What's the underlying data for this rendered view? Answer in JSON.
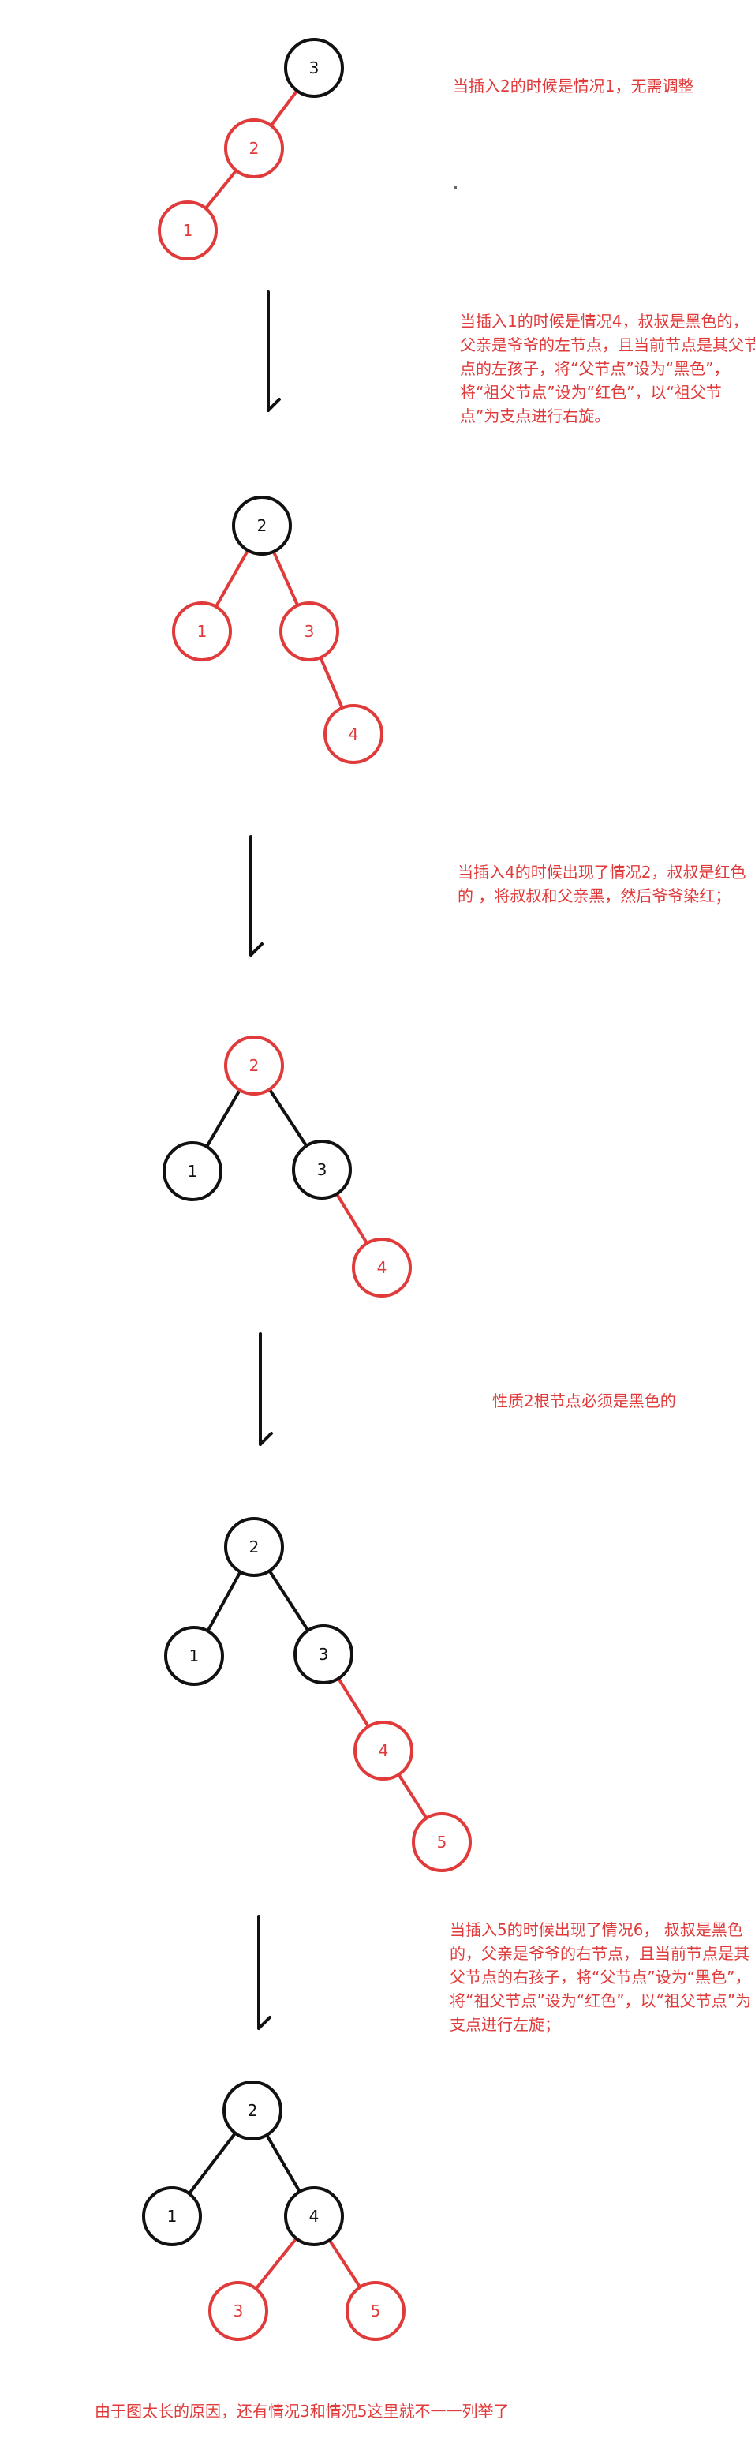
{
  "colors": {
    "red": "#e03a3a",
    "black": "#111111",
    "background": "#ffffff"
  },
  "notes": {
    "step1": "当插入2的时候是情况1，无需调整",
    "step2": "当插入1的时候是情况4，叔叔是黑色的，父亲是爷爷的左节点，且当前节点是其父节点的左孩子，将“父节点”设为“黑色”，将“祖父节点”设为“红色”，以“祖父节点”为支点进行右旋。",
    "step3": "当插入4的时候出现了情况2，叔叔是红色的 ，将叔叔和父亲黑，然后爷爷染红；",
    "step4": "性质2根节点必须是黑色的",
    "step5": "当插入5的时候出现了情况6， 叔叔是黑色的，父亲是爷爷的右节点，且当前节点是其父节点的右孩子，将“父节点”设为“黑色”，将“祖父节点”设为“红色”，以“祖父节点”为支点进行左旋；",
    "footer": "由于图太长的原因，还有情况3和情况5这里就不一一列举了"
  },
  "trees": [
    {
      "nodes": [
        {
          "id": "a",
          "label": "3",
          "color": "black"
        },
        {
          "id": "b",
          "label": "2",
          "color": "red"
        },
        {
          "id": "c",
          "label": "1",
          "color": "red"
        }
      ],
      "edges": [
        [
          "a",
          "b",
          "red"
        ],
        [
          "b",
          "c",
          "red"
        ]
      ]
    },
    {
      "nodes": [
        {
          "id": "a",
          "label": "2",
          "color": "black"
        },
        {
          "id": "b",
          "label": "1",
          "color": "red"
        },
        {
          "id": "c",
          "label": "3",
          "color": "red"
        },
        {
          "id": "d",
          "label": "4",
          "color": "red"
        }
      ],
      "edges": [
        [
          "a",
          "b",
          "red"
        ],
        [
          "a",
          "c",
          "red"
        ],
        [
          "c",
          "d",
          "red"
        ]
      ]
    },
    {
      "nodes": [
        {
          "id": "a",
          "label": "2",
          "color": "red"
        },
        {
          "id": "b",
          "label": "1",
          "color": "black"
        },
        {
          "id": "c",
          "label": "3",
          "color": "black"
        },
        {
          "id": "d",
          "label": "4",
          "color": "red"
        }
      ],
      "edges": [
        [
          "a",
          "b",
          "black"
        ],
        [
          "a",
          "c",
          "black"
        ],
        [
          "c",
          "d",
          "red"
        ]
      ]
    },
    {
      "nodes": [
        {
          "id": "a",
          "label": "2",
          "color": "black"
        },
        {
          "id": "b",
          "label": "1",
          "color": "black"
        },
        {
          "id": "c",
          "label": "3",
          "color": "black"
        },
        {
          "id": "d",
          "label": "4",
          "color": "red"
        },
        {
          "id": "e",
          "label": "5",
          "color": "red"
        }
      ],
      "edges": [
        [
          "a",
          "b",
          "black"
        ],
        [
          "a",
          "c",
          "black"
        ],
        [
          "c",
          "d",
          "red"
        ],
        [
          "d",
          "e",
          "red"
        ]
      ]
    },
    {
      "nodes": [
        {
          "id": "a",
          "label": "2",
          "color": "black"
        },
        {
          "id": "b",
          "label": "1",
          "color": "black"
        },
        {
          "id": "c",
          "label": "4",
          "color": "black"
        },
        {
          "id": "d",
          "label": "3",
          "color": "red"
        },
        {
          "id": "e",
          "label": "5",
          "color": "red"
        }
      ],
      "edges": [
        [
          "a",
          "b",
          "black"
        ],
        [
          "a",
          "c",
          "black"
        ],
        [
          "c",
          "d",
          "red"
        ],
        [
          "c",
          "e",
          "red"
        ]
      ]
    }
  ]
}
